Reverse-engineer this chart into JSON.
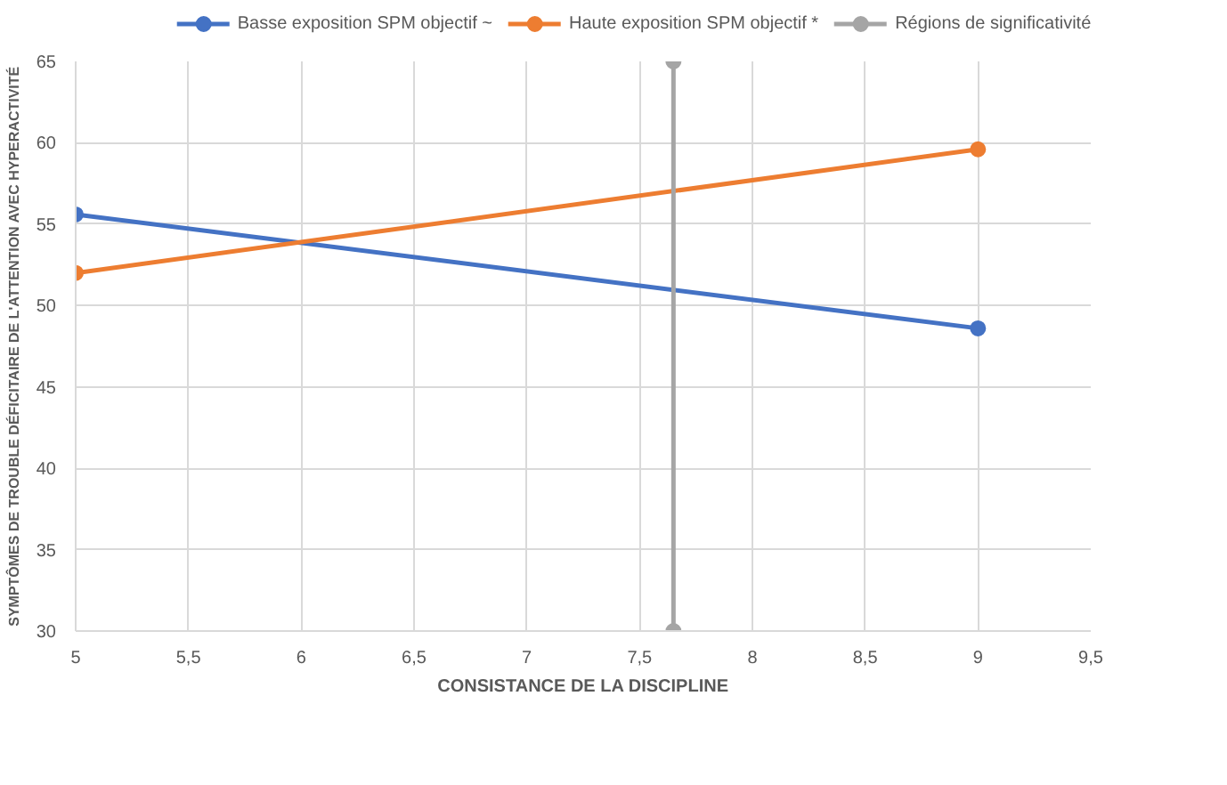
{
  "chart_data": {
    "type": "line",
    "xlabel": "CONSISTANCE DE LA DISCIPLINE",
    "ylabel": "SYMPTÔMES DE TROUBLE DÉFICITAIRE DE L'ATTENTION AVEC HYPERACTIVITÉ",
    "x": [
      5,
      9
    ],
    "series": [
      {
        "name": "Basse exposition SPM objectif ~",
        "color": "#4472c4",
        "values": [
          55.6,
          48.6
        ]
      },
      {
        "name": "Haute exposition SPM objectif *",
        "color": "#ed7d31",
        "values": [
          52,
          59.6
        ]
      },
      {
        "name": "Régions de significativité",
        "color": "#a5a5a5",
        "x": [
          7.65,
          7.65
        ],
        "values": [
          30,
          65
        ]
      }
    ],
    "xlim": [
      5,
      9.5
    ],
    "xticks": [
      5,
      {
        "value": 5.5,
        "label": "5,5"
      },
      6,
      {
        "value": 6.5,
        "label": "6,5"
      },
      7,
      {
        "value": 7.5,
        "label": "7,5"
      },
      8,
      {
        "value": 8.5,
        "label": "8,5"
      },
      9,
      {
        "value": 9.5,
        "label": "9,5"
      }
    ],
    "ylim": [
      30,
      65
    ],
    "yticks": [
      30,
      35,
      40,
      45,
      50,
      55,
      60,
      65
    ],
    "grid": true,
    "legend": "top",
    "marker": "circle",
    "line_style": "solid"
  }
}
